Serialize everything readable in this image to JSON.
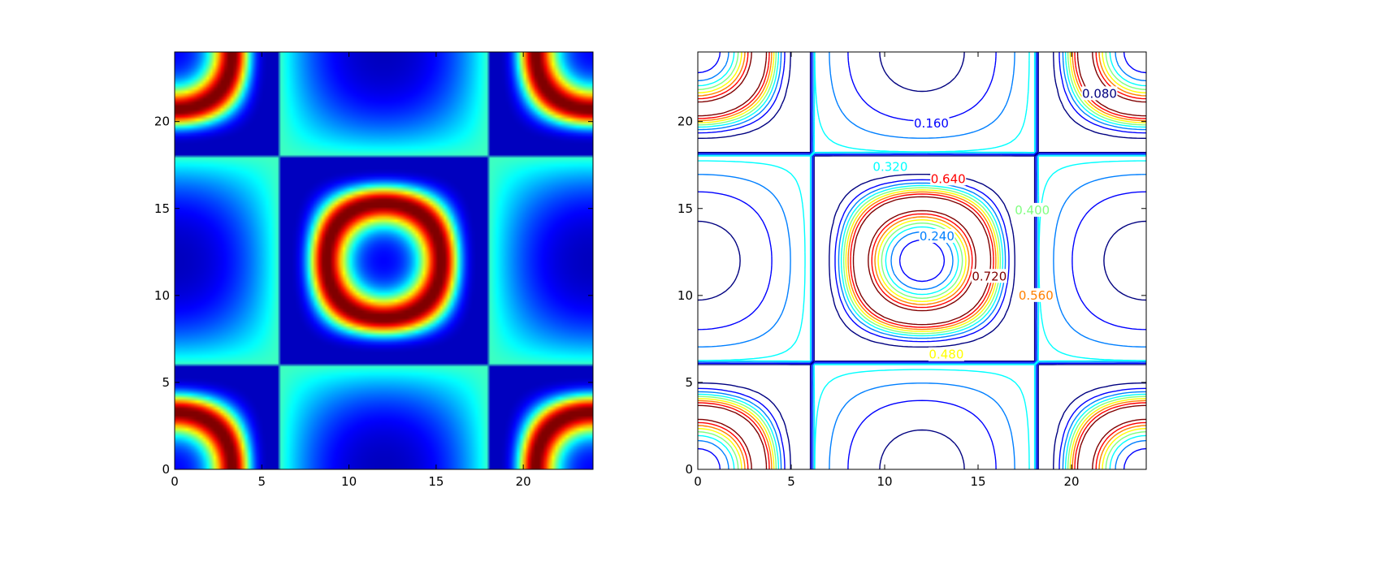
{
  "chart_data": [
    {
      "type": "heatmap",
      "title": "",
      "xlabel": "",
      "ylabel": "",
      "xlim": [
        0,
        24
      ],
      "ylim": [
        0,
        24
      ],
      "xticks": [
        "0",
        "5",
        "10",
        "15",
        "20"
      ],
      "yticks": [
        "0",
        "5",
        "10",
        "15",
        "20"
      ],
      "grid": false,
      "colormap": "jet",
      "value_range": [
        0,
        0.8
      ],
      "function": "z = (1 - cos(2*pi*x/24)*cos(2*pi*y/24)) * (1 - sqrt(sin(2*pi*x/24)^2 + sin(2*pi*y/24)^2)/sqrt(2)) ; normalized 0..1"
    },
    {
      "type": "contour",
      "title": "",
      "xlabel": "",
      "ylabel": "",
      "xlim": [
        0,
        24
      ],
      "ylim": [
        0,
        24
      ],
      "xticks": [
        "0",
        "5",
        "10",
        "15",
        "20"
      ],
      "yticks": [
        "0",
        "5",
        "10",
        "15",
        "20"
      ],
      "grid": false,
      "colormap": "jet",
      "levels": [
        0.08,
        0.16,
        0.24,
        0.32,
        0.4,
        0.48,
        0.56,
        0.64,
        0.72
      ],
      "level_labels": [
        "0.080",
        "0.160",
        "0.240",
        "0.320",
        "0.400",
        "0.480",
        "0.560",
        "0.640",
        "0.720"
      ]
    }
  ]
}
